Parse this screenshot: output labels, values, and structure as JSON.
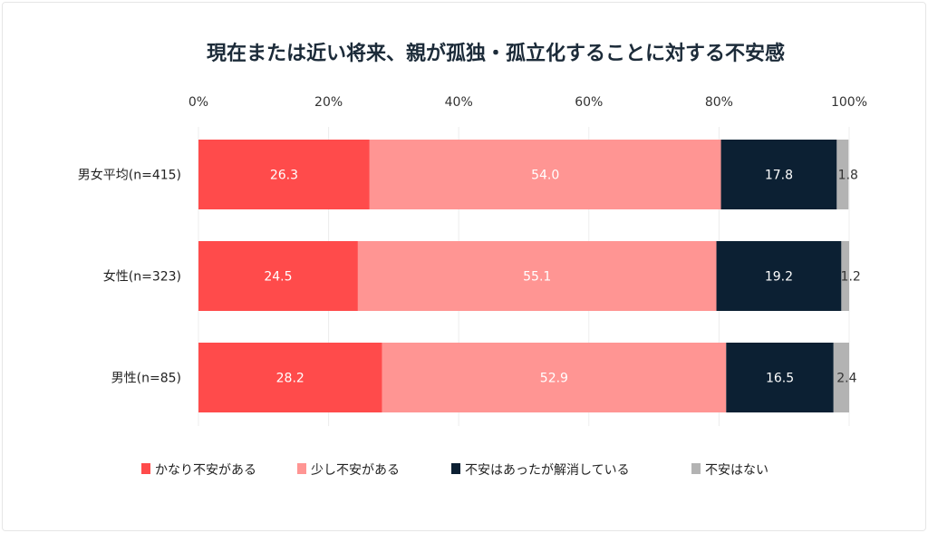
{
  "chart_data": {
    "type": "bar",
    "orientation": "horizontal",
    "stacked": true,
    "title": "現在または近い将来、親が孤独・孤立化することに対する不安感",
    "categories": [
      "男女平均(n=415)",
      "女性(n=323)",
      "男性(n=85)"
    ],
    "xlim": [
      0,
      100
    ],
    "x_ticks": [
      "0%",
      "20%",
      "40%",
      "60%",
      "80%",
      "100%"
    ],
    "grid": true,
    "legend_position": "bottom",
    "series": [
      {
        "name": "かなり不安がある",
        "color": "#ff4b4b",
        "label_color": "#ffffff",
        "values": [
          26.3,
          24.5,
          28.2
        ]
      },
      {
        "name": "少し不安がある",
        "color": "#ff9593",
        "label_color": "#ffffff",
        "values": [
          54.0,
          55.1,
          52.9
        ]
      },
      {
        "name": "不安はあったが解消している",
        "color": "#0c2033",
        "label_color": "#ffffff",
        "values": [
          17.8,
          19.2,
          16.5
        ]
      },
      {
        "name": "不安はない",
        "color": "#b3b3b3",
        "label_color": "#333333",
        "values": [
          1.8,
          1.2,
          2.4
        ]
      }
    ]
  }
}
